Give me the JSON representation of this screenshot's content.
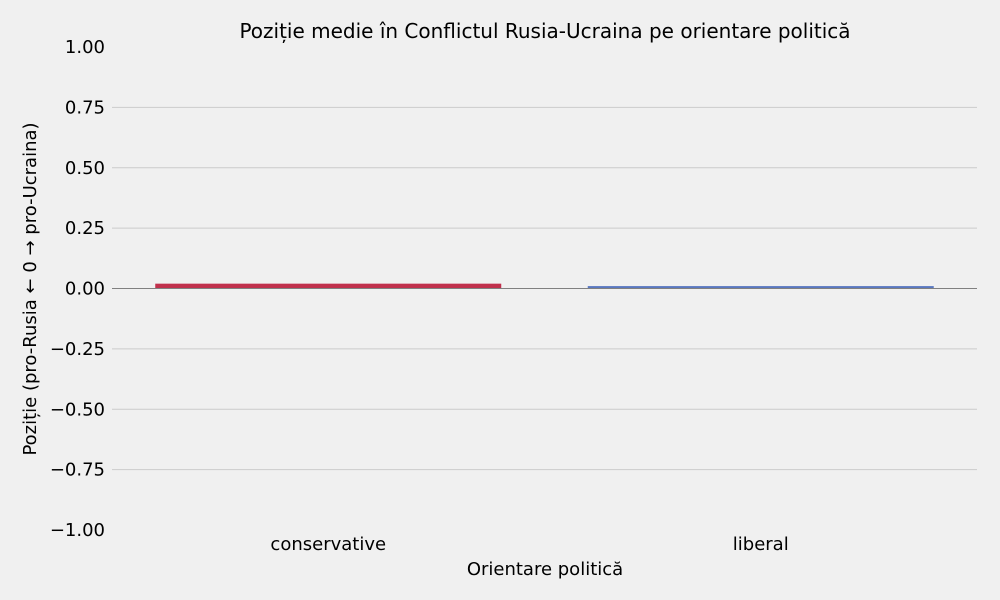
{
  "chart_data": {
    "type": "bar",
    "title": "Poziție medie în Conflictul Rusia-Ucraina pe orientare politică",
    "xlabel": "Orientare politică",
    "ylabel": "Poziție (pro-Rusia ← 0 → pro-Ucraina)",
    "categories": [
      "conservative",
      "liberal"
    ],
    "values": [
      0.02,
      0.01
    ],
    "colors": [
      "#c0304c",
      "#5a78c0"
    ],
    "ylim": [
      -1.0,
      1.0
    ],
    "yticks": [
      1.0,
      0.75,
      0.5,
      0.25,
      0.0,
      -0.25,
      -0.5,
      -0.75,
      -1.0
    ],
    "ytick_labels": [
      "1.00",
      "0.75",
      "0.50",
      "0.25",
      "0.00",
      "−0.25",
      "−0.50",
      "−0.75",
      "−1.00"
    ],
    "grid": true,
    "zero_line_color": "#808080",
    "grid_color": "#cbcbcb",
    "background": "#f0f0f0"
  }
}
